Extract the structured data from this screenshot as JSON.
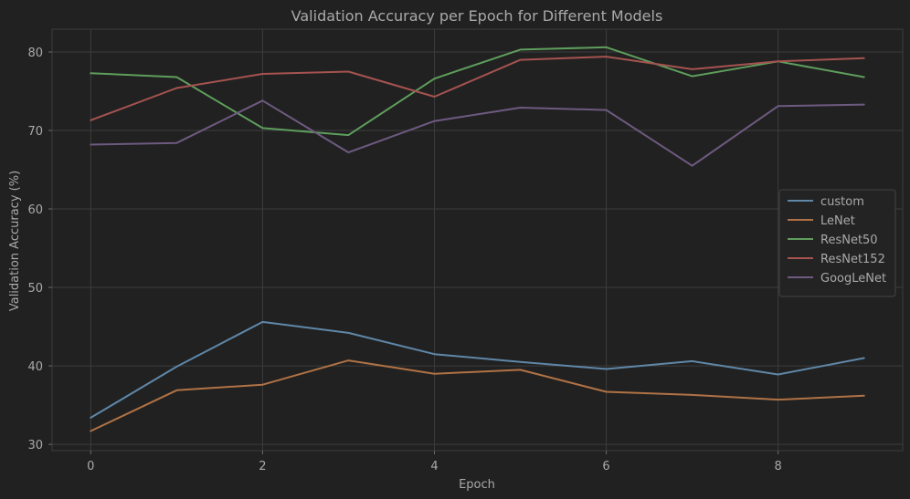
{
  "chart_data": {
    "type": "line",
    "title": "Validation Accuracy per Epoch for Different Models",
    "xlabel": "Epoch",
    "ylabel": "Validation Accuracy (%)",
    "xlim": [
      -0.45,
      9.45
    ],
    "ylim": [
      29.2,
      82.9
    ],
    "xticks": [
      0,
      2,
      4,
      6,
      8
    ],
    "yticks": [
      30,
      40,
      50,
      60,
      70,
      80
    ],
    "grid": true,
    "legend_position": "center-right",
    "x": [
      0,
      1,
      2,
      3,
      4,
      5,
      6,
      7,
      8,
      9
    ],
    "series": [
      {
        "name": "custom",
        "color": "#5f87a8",
        "values": [
          33.4,
          39.9,
          45.6,
          44.2,
          41.5,
          40.5,
          39.6,
          40.6,
          38.9,
          41.0
        ]
      },
      {
        "name": "LeNet",
        "color": "#b07245",
        "values": [
          31.7,
          36.9,
          37.6,
          40.7,
          39.0,
          39.5,
          36.7,
          36.3,
          35.7,
          36.2
        ]
      },
      {
        "name": "ResNet50",
        "color": "#5e9e5c",
        "values": [
          77.3,
          76.8,
          70.3,
          69.4,
          76.6,
          80.3,
          80.6,
          76.9,
          78.8,
          76.8
        ]
      },
      {
        "name": "ResNet152",
        "color": "#a55350",
        "values": [
          71.3,
          75.4,
          77.2,
          77.5,
          74.3,
          79.0,
          79.4,
          77.8,
          78.8,
          79.2
        ]
      },
      {
        "name": "GoogLeNet",
        "color": "#6e5a80",
        "values": [
          68.2,
          68.4,
          73.8,
          67.2,
          71.2,
          72.9,
          72.6,
          65.5,
          73.1,
          73.3
        ]
      }
    ]
  }
}
